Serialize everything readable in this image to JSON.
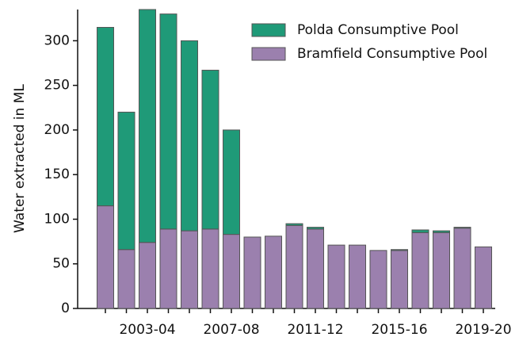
{
  "chart_data": {
    "type": "stacked-bar",
    "y_label": "Water extracted in ML",
    "categories": [
      null,
      null,
      "2003-04",
      null,
      null,
      null,
      "2007-08",
      null,
      null,
      null,
      "2011-12",
      null,
      null,
      null,
      "2015-16",
      null,
      null,
      null,
      "2019-20"
    ],
    "series": [
      {
        "name": "Bramfield Consumptive Pool",
        "color": "#9b80ae",
        "values": [
          115,
          66,
          74,
          89,
          87,
          89,
          83,
          80,
          81,
          93,
          89,
          71,
          71,
          65,
          65,
          85,
          85,
          90,
          69
        ]
      },
      {
        "name": "Polda Consumptive Pool",
        "color": "#1f9a78",
        "values": [
          200,
          154,
          261,
          241,
          213,
          178,
          117,
          0,
          0,
          2,
          2,
          0,
          0,
          0,
          1,
          3,
          2,
          1,
          0
        ]
      }
    ],
    "ylim": [
      0,
      335
    ],
    "yticks": [
      0,
      50,
      100,
      150,
      200,
      250,
      300
    ],
    "legend": "upper right"
  }
}
